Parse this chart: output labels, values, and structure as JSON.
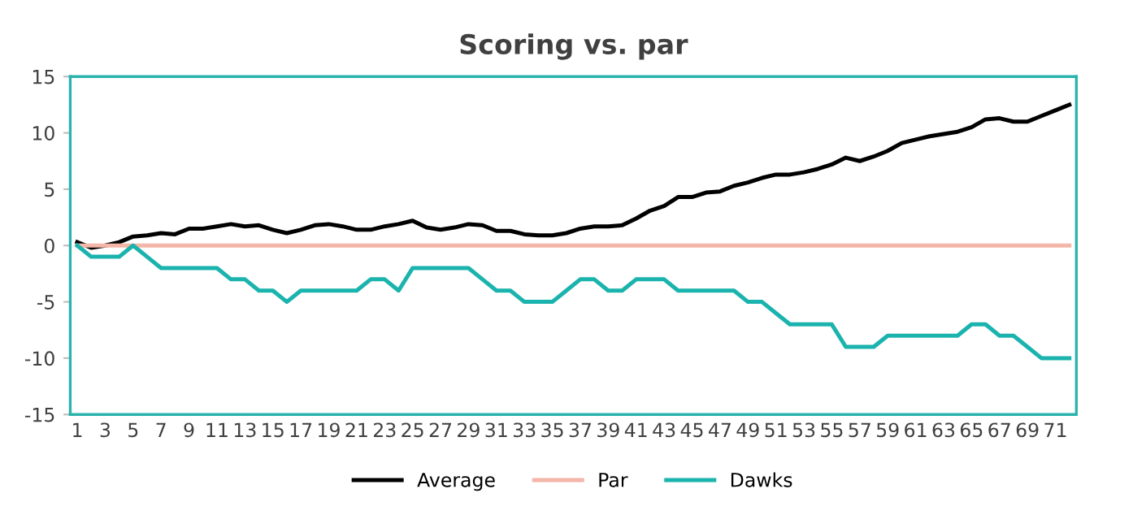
{
  "chart_data": {
    "type": "line",
    "title": "Scoring vs. par",
    "categories": [
      "1",
      null,
      "3",
      null,
      "5",
      null,
      "7",
      null,
      "9",
      null,
      "11",
      null,
      "13",
      null,
      "15",
      null,
      "17",
      null,
      "19",
      null,
      "21",
      null,
      "23",
      null,
      "25",
      null,
      "27",
      null,
      "29",
      null,
      "31",
      null,
      "33",
      null,
      "35",
      null,
      "37",
      null,
      "39",
      null,
      "41",
      null,
      "43",
      null,
      "45",
      null,
      "47",
      null,
      "49",
      null,
      "51",
      null,
      "53",
      null,
      "55",
      null,
      "57",
      null,
      "59",
      null,
      "61",
      null,
      "63",
      null,
      "65",
      null,
      "67",
      null,
      "69",
      null,
      "71",
      null
    ],
    "series": [
      {
        "name": "Average",
        "color": "#000000",
        "values": [
          0.3,
          -0.2,
          0,
          0.3,
          0.8,
          0.9,
          1.1,
          1.0,
          1.5,
          1.5,
          1.7,
          1.9,
          1.7,
          1.8,
          1.4,
          1.1,
          1.4,
          1.8,
          1.9,
          1.7,
          1.4,
          1.4,
          1.7,
          1.9,
          2.2,
          1.6,
          1.4,
          1.6,
          1.9,
          1.8,
          1.3,
          1.3,
          1.0,
          0.9,
          0.9,
          1.1,
          1.5,
          1.7,
          1.7,
          1.8,
          2.4,
          3.1,
          3.5,
          4.3,
          4.3,
          4.7,
          4.8,
          5.3,
          5.6,
          6.0,
          6.3,
          6.3,
          6.5,
          6.8,
          7.2,
          7.8,
          7.5,
          7.9,
          8.4,
          9.1,
          9.4,
          9.7,
          9.9,
          10.1,
          10.5,
          11.2,
          11.3,
          11.0,
          11.0,
          11.5,
          12.0,
          12.5
        ]
      },
      {
        "name": "Par",
        "color": "#f4b6a8",
        "values": [
          0,
          0,
          0,
          0,
          0,
          0,
          0,
          0,
          0,
          0,
          0,
          0,
          0,
          0,
          0,
          0,
          0,
          0,
          0,
          0,
          0,
          0,
          0,
          0,
          0,
          0,
          0,
          0,
          0,
          0,
          0,
          0,
          0,
          0,
          0,
          0,
          0,
          0,
          0,
          0,
          0,
          0,
          0,
          0,
          0,
          0,
          0,
          0,
          0,
          0,
          0,
          0,
          0,
          0,
          0,
          0,
          0,
          0,
          0,
          0,
          0,
          0,
          0,
          0,
          0,
          0,
          0,
          0,
          0,
          0,
          0,
          0
        ]
      },
      {
        "name": "Dawks",
        "color": "#1ab3ad",
        "values": [
          0,
          -1,
          -1,
          -1,
          0,
          -1,
          -2,
          -2,
          -2,
          -2,
          -2,
          -3,
          -3,
          -4,
          -4,
          -5,
          -4,
          -4,
          -4,
          -4,
          -4,
          -3,
          -3,
          -4,
          -2,
          -2,
          -2,
          -2,
          -2,
          -3,
          -4,
          -4,
          -5,
          -5,
          -5,
          -4,
          -3,
          -3,
          -4,
          -4,
          -3,
          -3,
          -3,
          -4,
          -4,
          -4,
          -4,
          -4,
          -5,
          -5,
          -6,
          -7,
          -7,
          -7,
          -7,
          -9,
          -9,
          -9,
          -8,
          -8,
          -8,
          -8,
          -8,
          -8,
          -7,
          -7,
          -8,
          -8,
          -9,
          -10,
          -10,
          -10
        ]
      }
    ],
    "ylim": [
      -15,
      15
    ],
    "yticks": [
      -15,
      -10,
      -5,
      0,
      5,
      10,
      15
    ],
    "grid": false,
    "legend": "bottom",
    "marker": "none",
    "line_style": "solid"
  }
}
